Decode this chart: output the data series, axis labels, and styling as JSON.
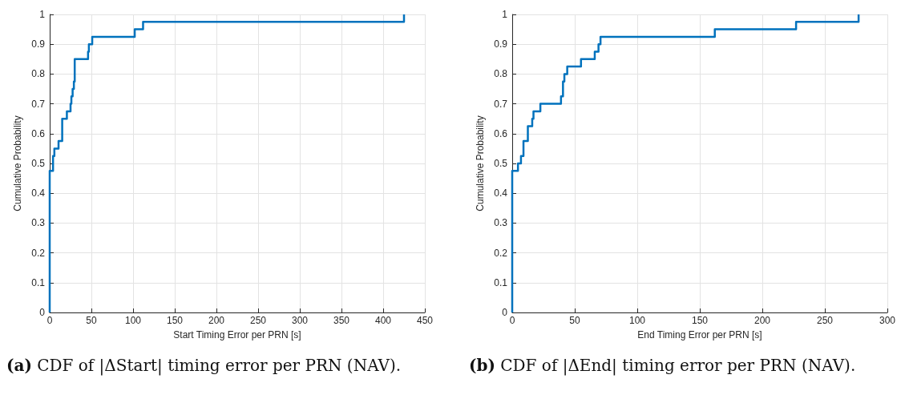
{
  "chart_data": [
    {
      "type": "step",
      "xlabel": "Start Timing Error per PRN [s]",
      "ylabel": "Cumulative Probability",
      "annotations": [
        "(a) CDF of |ΔStart| timing error per PRN (NAV)."
      ],
      "series": [
        {
          "color": "#0072bd",
          "x": [
            0,
            0,
            4,
            5.6,
            10.6,
            15,
            20.6,
            25,
            26,
            27.5,
            29,
            30,
            46,
            47,
            51,
            102,
            112,
            425
          ],
          "values": [
            0,
            0.475,
            0.525,
            0.55,
            0.575,
            0.65,
            0.675,
            0.7,
            0.725,
            0.75,
            0.775,
            0.85,
            0.875,
            0.9,
            0.925,
            0.95,
            0.975,
            1
          ]
        }
      ],
      "xlim": [
        0,
        450
      ],
      "xticks": [
        0,
        50,
        100,
        150,
        200,
        250,
        300,
        350,
        400,
        450
      ],
      "ylim": [
        0,
        1
      ],
      "yticks": [
        0,
        0.1,
        0.2,
        0.3,
        0.4,
        0.5,
        0.6,
        0.7,
        0.8,
        0.9,
        1
      ],
      "grid": true
    },
    {
      "type": "step",
      "xlabel": "End Timing Error per PRN [s]",
      "ylabel": "Cumulative Probability",
      "annotations": [
        "(b) CDF of |ΔEnd| timing error per PRN (NAV)."
      ],
      "series": [
        {
          "color": "#0072bd",
          "x": [
            0,
            0,
            4.6,
            7,
            9,
            12.5,
            16,
            17,
            22.5,
            39,
            40.6,
            41.7,
            44,
            55,
            66,
            69,
            70.6,
            162,
            227,
            277
          ],
          "values": [
            0,
            0.475,
            0.5,
            0.525,
            0.575,
            0.625,
            0.65,
            0.675,
            0.7,
            0.725,
            0.775,
            0.8,
            0.825,
            0.85,
            0.875,
            0.9,
            0.925,
            0.95,
            0.975,
            1
          ]
        }
      ],
      "xlim": [
        0,
        300
      ],
      "xticks": [
        0,
        50,
        100,
        150,
        200,
        250,
        300
      ],
      "ylim": [
        0,
        1
      ],
      "yticks": [
        0,
        0.1,
        0.2,
        0.3,
        0.4,
        0.5,
        0.6,
        0.7,
        0.8,
        0.9,
        1
      ],
      "grid": true
    }
  ]
}
